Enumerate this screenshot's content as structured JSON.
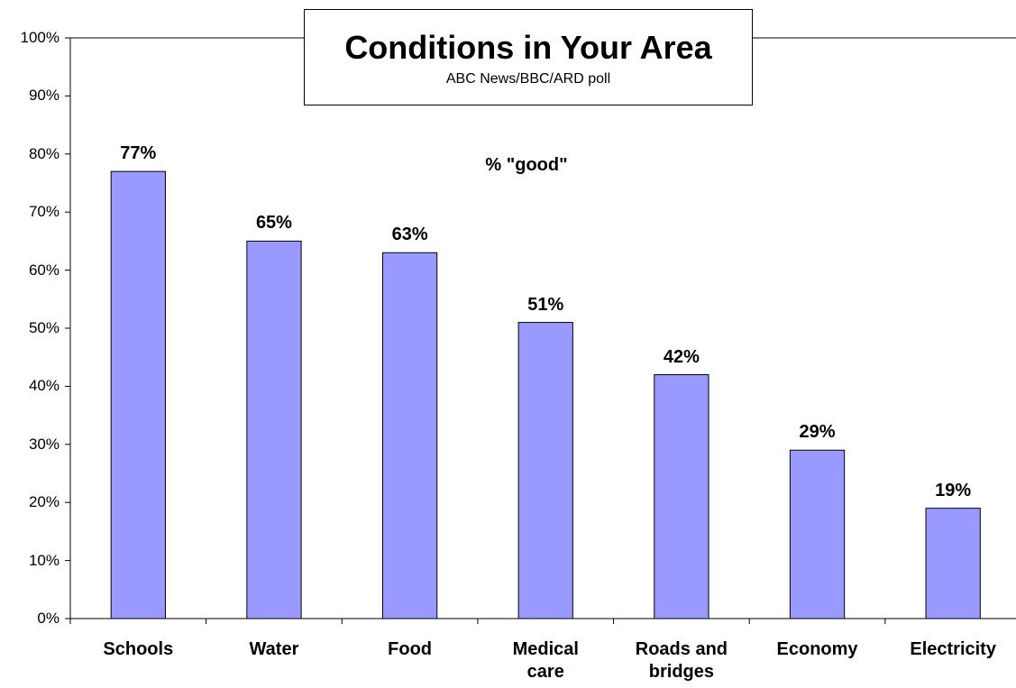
{
  "chart_data": {
    "type": "bar",
    "title": "Conditions in Your Area",
    "subtitle": "ABC News/BBC/ARD poll",
    "annotation": "% \"good\"",
    "categories": [
      "Schools",
      "Water",
      "Food",
      "Medical care",
      "Roads and bridges",
      "Economy",
      "Electricity"
    ],
    "values": [
      77,
      65,
      63,
      51,
      42,
      29,
      19
    ],
    "value_labels": [
      "77%",
      "65%",
      "63%",
      "51%",
      "42%",
      "29%",
      "19%"
    ],
    "color": "#9999ff",
    "ylim": [
      0,
      100
    ],
    "yticks": [
      {
        "value": 0,
        "label": "0%"
      },
      {
        "value": 10,
        "label": "10%"
      },
      {
        "value": 20,
        "label": "20%"
      },
      {
        "value": 30,
        "label": "30%"
      },
      {
        "value": 40,
        "label": "40%"
      },
      {
        "value": 50,
        "label": "50%"
      },
      {
        "value": 60,
        "label": "60%"
      },
      {
        "value": 70,
        "label": "70%"
      },
      {
        "value": 80,
        "label": "80%"
      },
      {
        "value": 90,
        "label": "90%"
      },
      {
        "value": 100,
        "label": "100%"
      }
    ],
    "grid": false
  }
}
